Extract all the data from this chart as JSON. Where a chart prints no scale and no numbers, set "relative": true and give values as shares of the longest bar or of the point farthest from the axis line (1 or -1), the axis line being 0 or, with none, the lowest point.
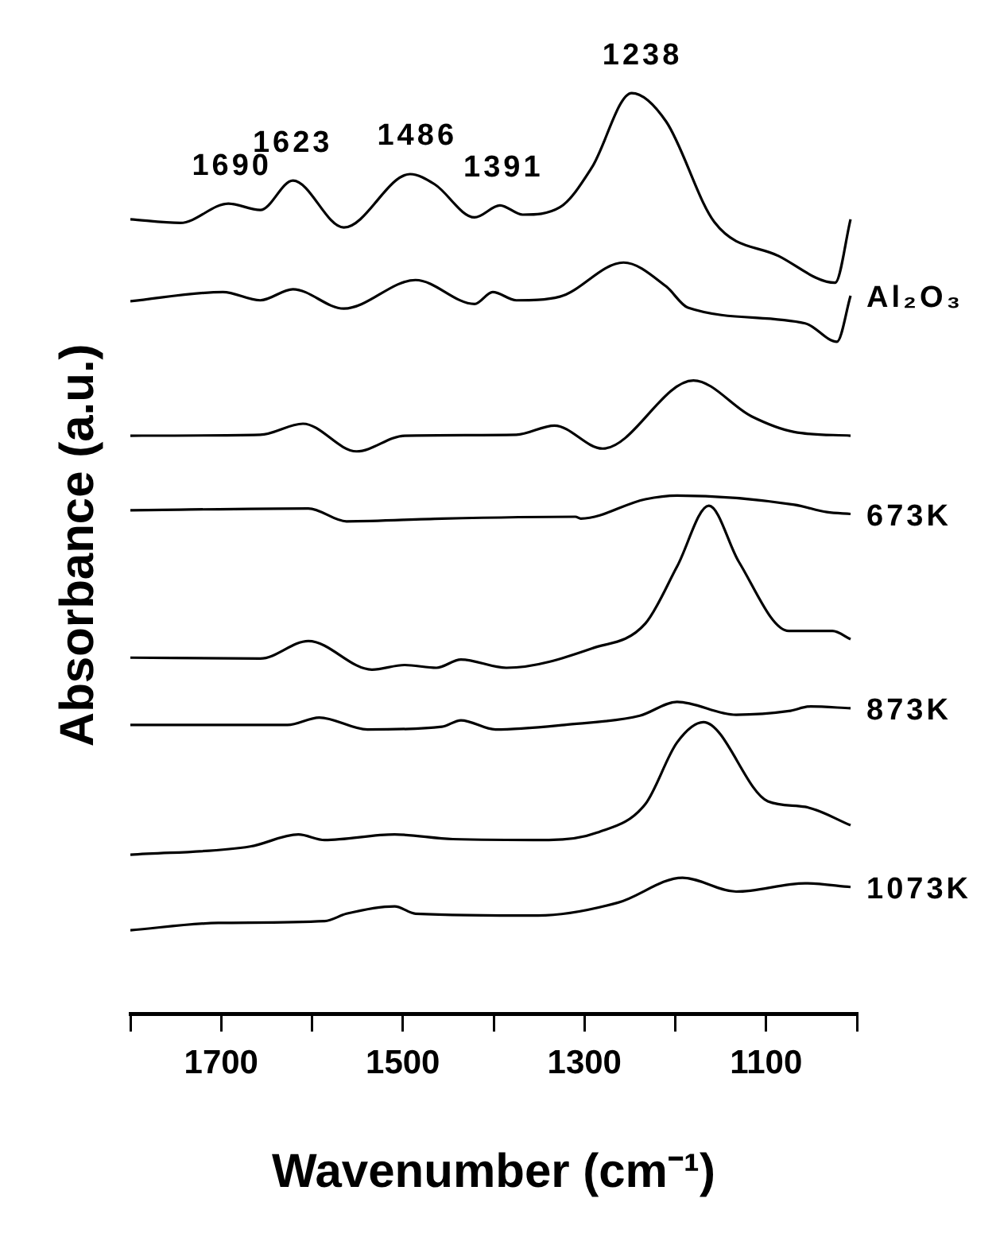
{
  "chart_data": {
    "type": "line",
    "relative": true,
    "xlabel": "Wavenumber (cm⁻¹)",
    "ylabel": "Absorbance (a.u.)",
    "xlim": [
      1800,
      1000
    ],
    "xticks": [
      {
        "value": 1800,
        "label": null
      },
      1700,
      {
        "value": 1600,
        "label": null
      },
      1500,
      {
        "value": 1400,
        "label": null
      },
      1300,
      {
        "value": 1200,
        "label": null
      },
      1100,
      {
        "value": 1000,
        "label": null
      }
    ],
    "grid": false,
    "legend": false,
    "marker": "none",
    "line_style": "solid",
    "series": [
      {
        "color": "#000000",
        "x": [
          1800,
          1745,
          1692,
          1657,
          1621,
          1565,
          1492,
          1465,
          1421,
          1393,
          1368,
          1327,
          1292,
          1248,
          1210,
          1157,
          1086,
          1024,
          1007
        ],
        "values": [
          0.863,
          0.859,
          0.88,
          0.873,
          0.905,
          0.854,
          0.912,
          0.901,
          0.865,
          0.878,
          0.868,
          0.876,
          0.919,
          1.0,
          0.969,
          0.86,
          0.823,
          0.794,
          0.863
        ]
      },
      {
        "color": "#000000",
        "x": [
          1800,
          1698,
          1657,
          1621,
          1565,
          1486,
          1421,
          1401,
          1375,
          1327,
          1257,
          1210,
          1186,
          1057,
          1022,
          1007
        ],
        "values": [
          0.774,
          0.784,
          0.775,
          0.787,
          0.766,
          0.797,
          0.771,
          0.784,
          0.775,
          0.779,
          0.816,
          0.79,
          0.767,
          0.75,
          0.73,
          0.78
        ]
      },
      {
        "color": "#000000",
        "x": [
          1800,
          1657,
          1610,
          1551,
          1498,
          1375,
          1333,
          1280,
          1180,
          1116,
          1069,
          1007
        ],
        "values": [
          0.628,
          0.629,
          0.641,
          0.611,
          0.628,
          0.629,
          0.639,
          0.614,
          0.688,
          0.649,
          0.632,
          0.628
        ]
      },
      {
        "color": "#000000",
        "x": [
          1800,
          1604,
          1562,
          1457,
          1310,
          1304,
          1233,
          1198,
          1069,
          1033,
          1007
        ],
        "values": [
          0.547,
          0.549,
          0.535,
          0.538,
          0.54,
          0.538,
          0.559,
          0.563,
          0.553,
          0.545,
          0.543
        ]
      },
      {
        "color": "#000000",
        "x": [
          1800,
          1657,
          1604,
          1534,
          1498,
          1463,
          1436,
          1386,
          1292,
          1233,
          1198,
          1163,
          1130,
          1075,
          1027,
          1007
        ],
        "values": [
          0.387,
          0.386,
          0.405,
          0.374,
          0.379,
          0.376,
          0.385,
          0.376,
          0.397,
          0.424,
          0.486,
          0.552,
          0.491,
          0.416,
          0.416,
          0.407
        ]
      },
      {
        "color": "#000000",
        "x": [
          1800,
          1627,
          1592,
          1539,
          1457,
          1436,
          1398,
          1322,
          1239,
          1198,
          1133,
          1075,
          1051,
          1007
        ],
        "values": [
          0.314,
          0.314,
          0.322,
          0.309,
          0.312,
          0.319,
          0.309,
          0.314,
          0.324,
          0.339,
          0.325,
          0.329,
          0.334,
          0.332
        ]
      },
      {
        "color": "#000000",
        "x": [
          1800,
          1668,
          1615,
          1586,
          1509,
          1445,
          1339,
          1286,
          1233,
          1198,
          1169,
          1098,
          1057,
          1007
        ],
        "values": [
          0.173,
          0.182,
          0.195,
          0.189,
          0.195,
          0.19,
          0.189,
          0.197,
          0.228,
          0.295,
          0.317,
          0.231,
          0.225,
          0.205
        ]
      },
      {
        "color": "#000000",
        "x": [
          1800,
          1703,
          1586,
          1562,
          1509,
          1486,
          1351,
          1263,
          1192,
          1133,
          1057,
          1007
        ],
        "values": [
          0.091,
          0.099,
          0.101,
          0.109,
          0.117,
          0.109,
          0.107,
          0.121,
          0.148,
          0.133,
          0.142,
          0.138
        ]
      }
    ],
    "annotations": [
      {
        "text": "1690",
        "x": 1690,
        "y": 0.88
      },
      {
        "text": "1623",
        "x": 1623,
        "y": 0.905
      },
      {
        "text": "1486",
        "x": 1486,
        "y": 0.912
      },
      {
        "text": "1391",
        "x": 1391,
        "y": 0.878
      },
      {
        "text": "1238",
        "x": 1238,
        "y": 1.0
      },
      "Al₂O₃",
      "673K",
      "873K",
      "1073K"
    ]
  }
}
